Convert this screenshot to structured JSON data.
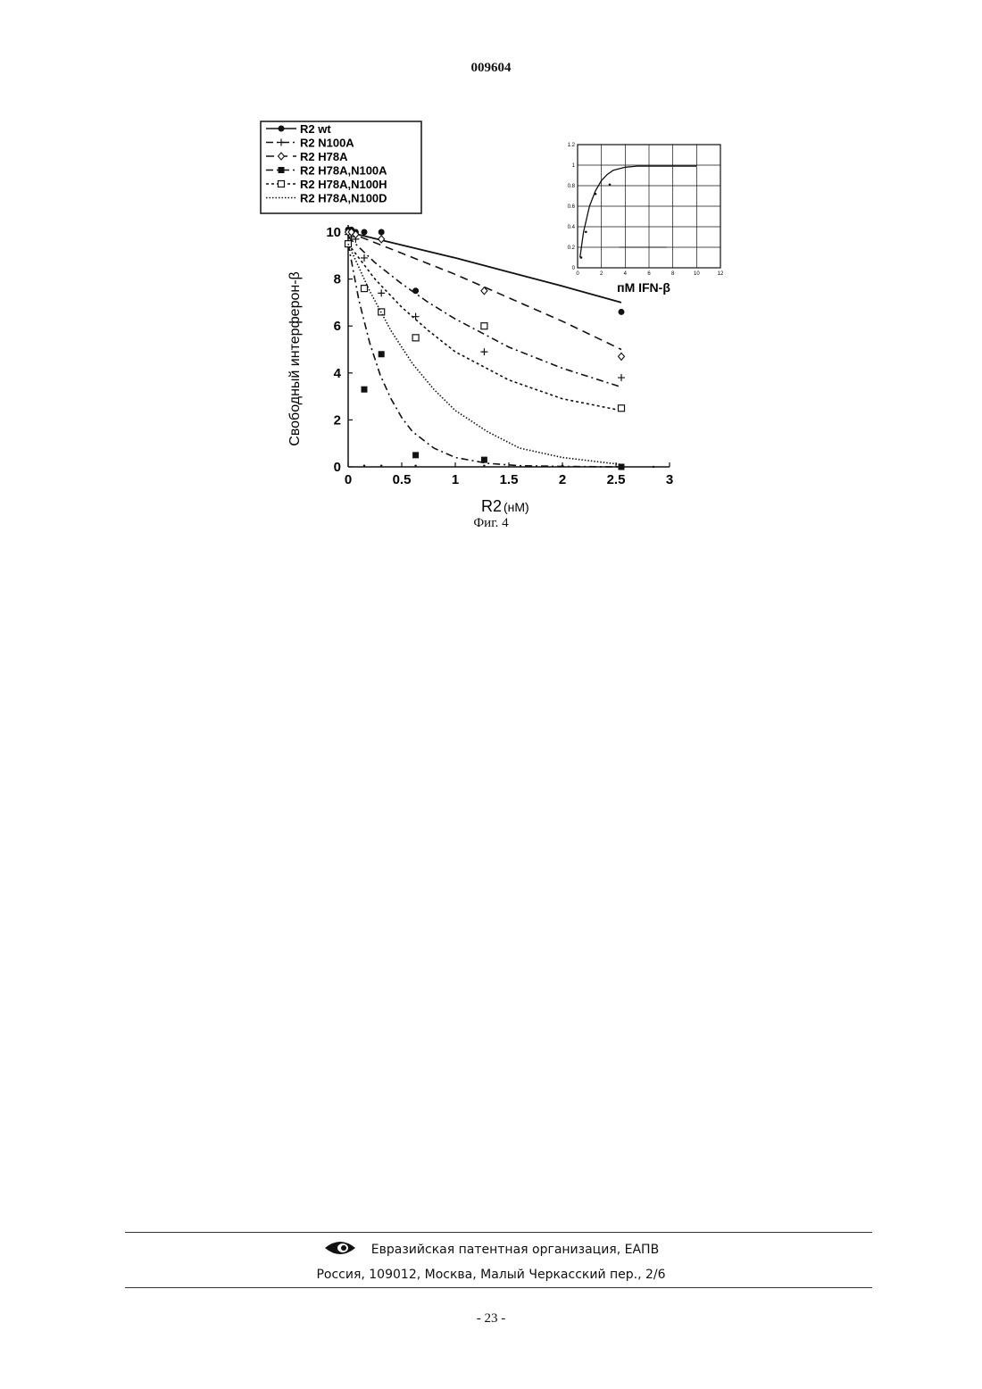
{
  "header": {
    "doc_number": "009604"
  },
  "caption": "Фиг. 4",
  "footer": {
    "org": "Евразийская патентная организация, ЕАПВ",
    "address": "Россия, 109012, Москва, Малый Черкасский пер., 2/6",
    "page": "- 23 -",
    "logo_icon": "eye-logo-icon"
  },
  "chart_data": [
    {
      "type": "line",
      "xlabel_main": "R2",
      "xlabel_unit": "(нМ)",
      "ylabel": "Свободный интерферон-β",
      "xlim": [
        0,
        3
      ],
      "ylim": [
        0,
        10
      ],
      "xticks": [
        "0",
        "0.5",
        "1",
        "1.5",
        "2",
        "2.5",
        "3"
      ],
      "yticks": [
        "0",
        "2",
        "4",
        "6",
        "8",
        "10"
      ],
      "legend_position": "top-left",
      "series": [
        {
          "name": "R2 wt",
          "marker": "filled-circle",
          "line": "solid",
          "fit": {
            "x": [
              0,
              0.5,
              1,
              1.5,
              2,
              2.55
            ],
            "y": [
              10,
              9.45,
              8.9,
              8.3,
              7.7,
              7.0
            ]
          },
          "points": {
            "x": [
              0,
              0.03,
              0.07,
              0.15,
              0.31,
              0.63,
              2.55
            ],
            "y": [
              10.1,
              10.1,
              10.0,
              10.0,
              10.0,
              7.5,
              6.6
            ]
          }
        },
        {
          "name": "R2 N100A",
          "marker": "cross",
          "line": "dash-dot",
          "fit": {
            "x": [
              0,
              0.25,
              0.5,
              0.75,
              1,
              1.5,
              2,
              2.55
            ],
            "y": [
              9.8,
              8.7,
              7.8,
              7.0,
              6.3,
              5.1,
              4.2,
              3.4
            ]
          },
          "points": {
            "x": [
              0,
              0.03,
              0.07,
              0.15,
              0.31,
              0.63,
              1.27,
              2.55
            ],
            "y": [
              9.9,
              9.8,
              9.7,
              8.9,
              7.4,
              6.4,
              4.9,
              3.8
            ]
          }
        },
        {
          "name": "R2 H78A",
          "marker": "open-diamond",
          "line": "dashed",
          "fit": {
            "x": [
              0,
              0.5,
              1,
              1.5,
              2,
              2.55
            ],
            "y": [
              10,
              9.1,
              8.2,
              7.2,
              6.2,
              5.0
            ]
          },
          "points": {
            "x": [
              0,
              0.03,
              0.07,
              0.31,
              1.27,
              2.55
            ],
            "y": [
              10.0,
              10.0,
              9.9,
              9.7,
              7.5,
              4.7
            ]
          }
        },
        {
          "name": "R2 H78A,N100A",
          "marker": "filled-square",
          "line": "dash-dot",
          "fit": {
            "x": [
              0,
              0.1,
              0.2,
              0.3,
              0.4,
              0.5,
              0.6,
              0.8,
              1,
              1.3,
              1.6,
              2,
              2.55
            ],
            "y": [
              9.5,
              7.1,
              5.3,
              3.9,
              2.9,
              2.1,
              1.5,
              0.8,
              0.4,
              0.15,
              0.05,
              0.02,
              0.0
            ]
          },
          "points": {
            "x": [
              0,
              0.15,
              0.31,
              0.63,
              1.27,
              2.55
            ],
            "y": [
              9.5,
              3.3,
              4.8,
              0.5,
              0.3,
              0.0
            ]
          }
        },
        {
          "name": "R2 H78A,N100H",
          "marker": "open-square",
          "line": "dotted",
          "fit": {
            "x": [
              0,
              0.25,
              0.5,
              0.75,
              1,
              1.5,
              2,
              2.55
            ],
            "y": [
              9.5,
              8.0,
              6.8,
              5.8,
              4.9,
              3.7,
              2.9,
              2.4
            ]
          },
          "points": {
            "x": [
              0,
              0.15,
              0.31,
              0.63,
              1.27,
              2.55
            ],
            "y": [
              9.5,
              7.6,
              6.6,
              5.5,
              6.0,
              2.5
            ]
          }
        },
        {
          "name": "R2 H78A,N100D",
          "marker": "none",
          "line": "fine-dotted",
          "fit": {
            "x": [
              0,
              0.2,
              0.4,
              0.6,
              0.8,
              1,
              1.3,
              1.6,
              2,
              2.55
            ],
            "y": [
              9.5,
              7.5,
              5.8,
              4.4,
              3.3,
              2.4,
              1.5,
              0.8,
              0.4,
              0.1
            ]
          },
          "points": {
            "x": [],
            "y": []
          }
        }
      ],
      "baseline_dots": {
        "x": [
          0.15,
          0.31,
          0.63,
          1.27,
          2.0,
          2.55,
          2.85
        ],
        "y": [
          0.05,
          0.05,
          0.05,
          0.05,
          0.05,
          0.05,
          0.0
        ]
      }
    },
    {
      "type": "line",
      "inset": true,
      "xlabel": "пМ IFN-β",
      "xlim": [
        0,
        12
      ],
      "ylim": [
        0,
        1.2
      ],
      "xticks": [
        "0",
        "2",
        "4",
        "6",
        "8",
        "10",
        "12"
      ],
      "yticks": [
        "0",
        "0.2",
        "0.4",
        "0.6",
        "0.8",
        "1",
        "1.2"
      ],
      "grid": true,
      "series": [
        {
          "fit": {
            "x": [
              0.2,
              0.5,
              1,
              1.5,
              2,
              2.5,
              3,
              4,
              5,
              6,
              8,
              10
            ],
            "y": [
              0.1,
              0.35,
              0.6,
              0.75,
              0.85,
              0.91,
              0.95,
              0.98,
              0.99,
              0.99,
              0.99,
              0.99
            ]
          },
          "points": {
            "x": [
              0.3,
              0.7,
              1.5,
              2.7
            ],
            "y": [
              0.1,
              0.35,
              0.72,
              0.81
            ]
          }
        }
      ]
    }
  ]
}
